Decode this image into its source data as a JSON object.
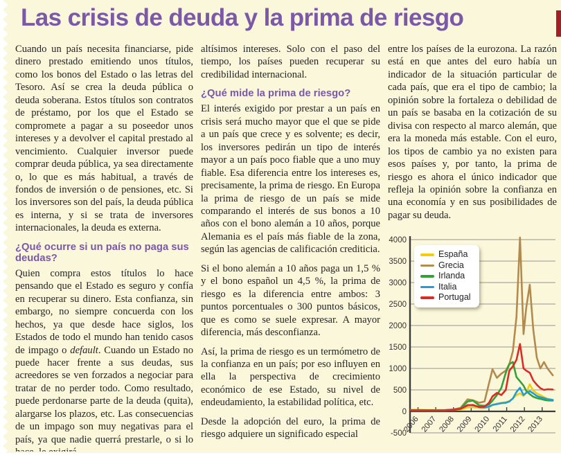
{
  "page": {
    "title": "Las crisis de deuda y la prima de riesgo"
  },
  "article": {
    "col1": {
      "p1": "Cuando un país necesita financiarse, pide dinero prestado emitiendo unos títulos, como los bonos del Estado o las letras del Tesoro. Así se crea la deuda pública o deuda soberana. Estos títulos son contratos de préstamo, por los que el Estado se compromete a pagar a su poseedor unos intereses y a devolver el capital prestado al vencimiento. Cualquier inversor puede comprar deuda pública, ya sea directamente o, lo que es más habitual, a través de fondos de inversión o de pensiones, etc. Si los inversores son del país, la deuda pública es interna, y si se trata de inversores internacionales, la deuda es externa.",
      "heading1": "¿Qué ocurre si un país no paga sus deudas?",
      "p2_before": "Quien compra estos títulos lo hace pensando que el Estado es seguro y confía en recuperar su dinero. Esta confianza, sin embargo, no siempre concuerda con los hechos, ya que desde hace siglos, los Estados de todo el mundo han tenido casos de impago o ",
      "p2_italic": "default",
      "p2_after": ". Cuando un Estado no puede hacer frente a sus deudas, sus acreedores se ven forzados a negociar para tratar de no perder todo. Como resultado, puede perdonarse parte de la deuda (quita), alargarse los plazos, etc. Las consecuencias de un impago son muy negativas para el país, ya que nadie querrá prestarle, o si lo hace, le exigirá"
    },
    "col2": {
      "p3": "altísimos intereses. Solo con el paso del tiempo, los países pueden recuperar su credibilidad internacional.",
      "heading2": "¿Qué mide la prima de riesgo?",
      "p4": "El interés exigido por prestar a un país en crisis será mucho mayor que el que se pide a un país que crece y es solvente; es decir, los inversores pedirán un tipo de interés mayor a un país poco fiable que a uno muy fiable. Esa diferencia entre los intereses es, precisamente, la prima de riesgo. En Europa la prima de riesgo de un país se mide comparando el interés de sus bonos a 10 años con el bono alemán a 10 años, porque Alemania es el país más fiable de la zona, según las agencias de calificación crediticia.",
      "p5": "Si el bono alemán a 10 años paga un 1,5 % y el bono español un 4,5 %, la prima de riesgo es la diferencia entre ambos: 3 puntos porcentuales o 300 puntos básicos, que es como se suele expresar. A mayor diferencia, más desconfianza.",
      "p6": "Así, la prima de riesgo es un termómetro de la confianza en un país; por eso influyen en ella la perspectiva de crecimiento económico de ese Estado, su nivel de endeudamiento, la estabilidad política, etc.",
      "p7": "Desde la adopción del euro, la prima de riesgo adquiere un significado especial"
    },
    "col3": {
      "p8": "entre los países de la eurozona. La razón está en que antes del euro había un indicador de la situación particular de cada país, que era el tipo de cambio; la opinión sobre la fortaleza o debilidad de un país se basaba en la cotización de su divisa con respecto al marco alemán, que era la moneda más estable. Con el euro, los tipos de cambio ya no existen para esos países y, por tanto, la prima de riesgo es ahora el único indicador que refleja la opinión sobre la confianza en una economía y en sus posibilidades de pagar su deuda."
    }
  },
  "chart_data": {
    "type": "line",
    "title": "",
    "xlabel": "",
    "ylabel": "",
    "grid": true,
    "legend_position": "top-left",
    "xlim": [
      2005.55,
      2013.75
    ],
    "ylim": [
      -500,
      4000
    ],
    "x_ticks": [
      2006,
      2007,
      2008,
      2009,
      2010,
      2011,
      2012,
      2013
    ],
    "y_ticks": [
      4000,
      3500,
      3000,
      2500,
      2000,
      1500,
      1000,
      500,
      0,
      -500
    ],
    "x": [
      2005.6,
      2006.0,
      2006.5,
      2007.0,
      2007.5,
      2008.0,
      2008.4,
      2008.8,
      2009.1,
      2009.45,
      2009.75,
      2010.0,
      2010.2,
      2010.45,
      2010.7,
      2010.95,
      2011.15,
      2011.35,
      2011.55,
      2011.75,
      2011.95,
      2012.1,
      2012.3,
      2012.5,
      2012.7,
      2012.9,
      2013.1,
      2013.3,
      2013.6
    ],
    "series": [
      {
        "name": "España",
        "color": "#F2CD0A",
        "values": [
          35,
          35,
          33,
          30,
          28,
          32,
          45,
          90,
          95,
          80,
          78,
          95,
          150,
          180,
          200,
          215,
          240,
          300,
          380,
          420,
          360,
          430,
          630,
          480,
          420,
          380,
          330,
          295,
          270
        ]
      },
      {
        "name": "Grecia",
        "color": "#B3894C",
        "values": [
          30,
          30,
          28,
          28,
          30,
          45,
          80,
          280,
          260,
          200,
          230,
          650,
          980,
          780,
          880,
          950,
          1100,
          1400,
          2200,
          4050,
          1800,
          2400,
          2950,
          1900,
          1250,
          1000,
          1150,
          1000,
          840
        ]
      },
      {
        "name": "Irlanda",
        "color": "#33A135",
        "values": [
          20,
          20,
          20,
          18,
          20,
          35,
          70,
          230,
          250,
          140,
          130,
          160,
          250,
          380,
          550,
          900,
          1100,
          1150,
          800,
          700,
          600,
          480,
          400,
          340,
          310,
          290,
          270,
          255,
          250
        ]
      },
      {
        "name": "Italia",
        "color": "#1E9DDA",
        "values": [
          25,
          25,
          25,
          22,
          25,
          35,
          60,
          150,
          140,
          100,
          90,
          110,
          150,
          170,
          190,
          200,
          230,
          300,
          450,
          550,
          380,
          430,
          470,
          420,
          360,
          330,
          310,
          280,
          265
        ]
      },
      {
        "name": "Portugal",
        "color": "#DC2B22",
        "values": [
          25,
          25,
          25,
          22,
          25,
          35,
          60,
          140,
          150,
          100,
          110,
          200,
          350,
          430,
          380,
          500,
          950,
          1050,
          1200,
          1570,
          1000,
          950,
          900,
          720,
          620,
          540,
          500,
          515,
          510
        ]
      }
    ]
  },
  "colors": {
    "page_bg": "#FBF7DB",
    "title": "#7C58A8",
    "heading": "#7C58A8",
    "body": "#232323",
    "corner_bar": "#A61E22",
    "grid": "#999388",
    "axis": "#3B3B3B",
    "tick_label": "#333333"
  }
}
